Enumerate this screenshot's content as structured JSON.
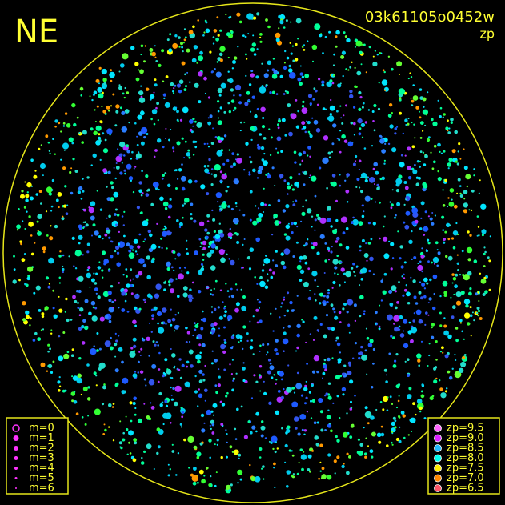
{
  "header": {
    "direction": "NE",
    "frame_id": "03k61105o0452w",
    "mode": "zp"
  },
  "magnitude_legend": [
    "m=0",
    "m=1",
    "m=2",
    "m=3",
    "m=4",
    "m=5",
    "m=6"
  ],
  "zp_legend": [
    "zp=9.5",
    "zp=9.0",
    "zp=8.5",
    "zp=8.0",
    "zp=7.5",
    "zp=7.0",
    "zp=6.5"
  ]
}
